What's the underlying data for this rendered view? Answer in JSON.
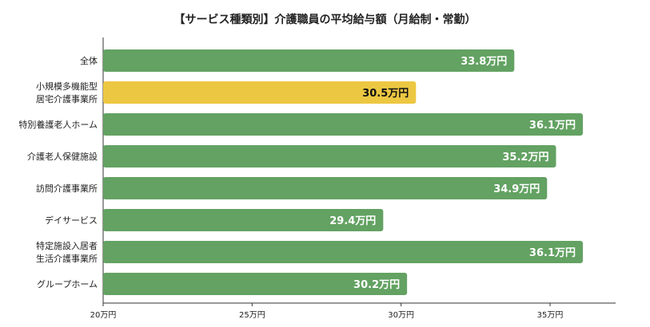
{
  "chart_data": {
    "type": "bar",
    "orientation": "horizontal",
    "title": "【サービス種類別】介護職員の平均給与額（月給制・常勤）",
    "categories": [
      [
        "全体"
      ],
      [
        "小規模多機能型",
        "居宅介護事業所"
      ],
      [
        "特別養護老人ホーム"
      ],
      [
        "介護老人保健施設"
      ],
      [
        "訪問介護事業所"
      ],
      [
        "デイサービス"
      ],
      [
        "特定施設入居者",
        "生活介護事業所"
      ],
      [
        "グループホーム"
      ]
    ],
    "values": [
      33.8,
      30.5,
      36.1,
      35.2,
      34.9,
      29.4,
      36.1,
      30.2
    ],
    "value_labels": [
      "33.8万円",
      "30.5万円",
      "36.1万円",
      "35.2万円",
      "34.9万円",
      "29.4万円",
      "36.1万円",
      "30.2万円"
    ],
    "highlight_index": 1,
    "xlim": [
      20,
      37.2
    ],
    "ticks": [
      20,
      25,
      30,
      35
    ],
    "tick_labels": [
      "20万円",
      "25万円",
      "30万円",
      "35万円"
    ],
    "grid": false,
    "colors": {
      "bar": "#63a262",
      "highlight": "#ecc742",
      "label_light": "#ffffff",
      "label_dark": "#111111",
      "axis": "#333333"
    }
  }
}
